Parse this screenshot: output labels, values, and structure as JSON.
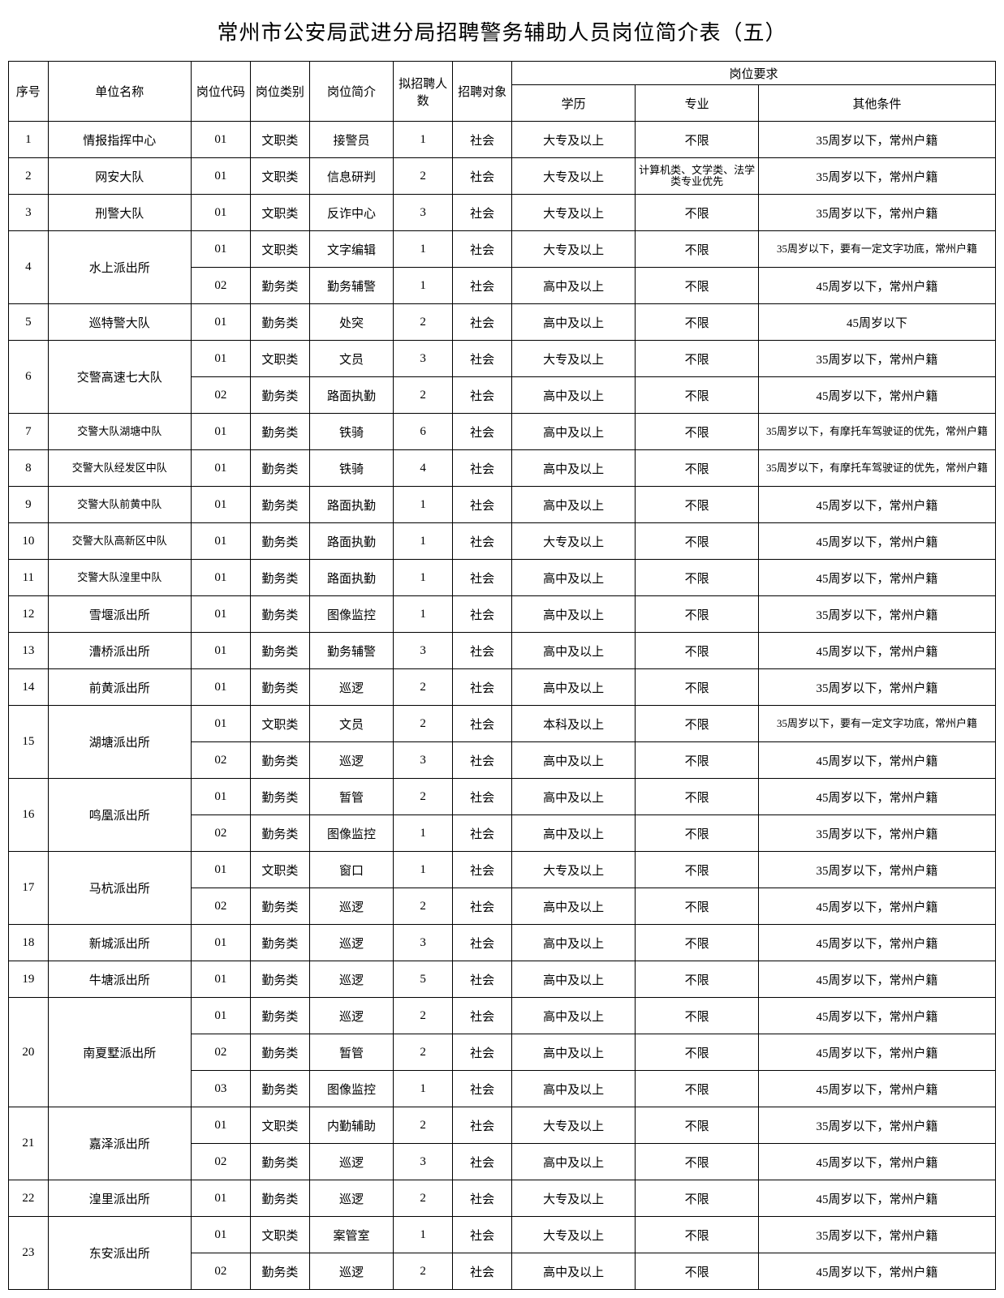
{
  "title": "常州市公安局武进分局招聘警务辅助人员岗位简介表（五）",
  "headers": {
    "seq": "序号",
    "unit": "单位名称",
    "code": "岗位代码",
    "cat": "岗位类别",
    "desc": "岗位简介",
    "num": "拟招聘人数",
    "target": "招聘对象",
    "req": "岗位要求",
    "edu": "学历",
    "major": "专业",
    "other": "其他条件"
  },
  "rows": [
    {
      "seq": "1",
      "unit": "情报指挥中心",
      "unitSpan": 1,
      "code": "01",
      "cat": "文职类",
      "desc": "接警员",
      "num": "1",
      "tgt": "社会",
      "edu": "大专及以上",
      "major": "不限",
      "other": "35周岁以下，常州户籍"
    },
    {
      "seq": "2",
      "unit": "网安大队",
      "unitSpan": 1,
      "code": "01",
      "cat": "文职类",
      "desc": "信息研判",
      "num": "2",
      "tgt": "社会",
      "edu": "大专及以上",
      "major": "计算机类、文学类、法学类专业优先",
      "majorSmall": true,
      "other": "35周岁以下，常州户籍"
    },
    {
      "seq": "3",
      "unit": "刑警大队",
      "unitSpan": 1,
      "code": "01",
      "cat": "文职类",
      "desc": "反诈中心",
      "num": "3",
      "tgt": "社会",
      "edu": "大专及以上",
      "major": "不限",
      "other": "35周岁以下，常州户籍"
    },
    {
      "seq": "4",
      "unit": "水上派出所",
      "unitSpan": 2,
      "code": "01",
      "cat": "文职类",
      "desc": "文字编辑",
      "num": "1",
      "tgt": "社会",
      "edu": "大专及以上",
      "major": "不限",
      "other": "35周岁以下，要有一定文字功底，常州户籍",
      "otherSmall": true
    },
    {
      "code": "02",
      "cat": "勤务类",
      "desc": "勤务辅警",
      "num": "1",
      "tgt": "社会",
      "edu": "高中及以上",
      "major": "不限",
      "other": "45周岁以下，常州户籍"
    },
    {
      "seq": "5",
      "unit": "巡特警大队",
      "unitSpan": 1,
      "code": "01",
      "cat": "勤务类",
      "desc": "处突",
      "num": "2",
      "tgt": "社会",
      "edu": "高中及以上",
      "major": "不限",
      "other": "45周岁以下"
    },
    {
      "seq": "6",
      "unit": "交警高速七大队",
      "unitSpan": 2,
      "code": "01",
      "cat": "文职类",
      "desc": "文员",
      "num": "3",
      "tgt": "社会",
      "edu": "大专及以上",
      "major": "不限",
      "other": "35周岁以下，常州户籍"
    },
    {
      "code": "02",
      "cat": "勤务类",
      "desc": "路面执勤",
      "num": "2",
      "tgt": "社会",
      "edu": "高中及以上",
      "major": "不限",
      "other": "45周岁以下，常州户籍"
    },
    {
      "seq": "7",
      "unit": "交警大队湖塘中队",
      "unitSpan": 1,
      "unitSmall": true,
      "code": "01",
      "cat": "勤务类",
      "desc": "铁骑",
      "num": "6",
      "tgt": "社会",
      "edu": "高中及以上",
      "major": "不限",
      "other": "35周岁以下，有摩托车驾驶证的优先，常州户籍",
      "otherSmall": true
    },
    {
      "seq": "8",
      "unit": "交警大队经发区中队",
      "unitSpan": 1,
      "unitSmall": true,
      "code": "01",
      "cat": "勤务类",
      "desc": "铁骑",
      "num": "4",
      "tgt": "社会",
      "edu": "高中及以上",
      "major": "不限",
      "other": "35周岁以下，有摩托车驾驶证的优先，常州户籍",
      "otherSmall": true
    },
    {
      "seq": "9",
      "unit": "交警大队前黄中队",
      "unitSpan": 1,
      "unitSmall": true,
      "code": "01",
      "cat": "勤务类",
      "desc": "路面执勤",
      "num": "1",
      "tgt": "社会",
      "edu": "高中及以上",
      "major": "不限",
      "other": "45周岁以下，常州户籍"
    },
    {
      "seq": "10",
      "unit": "交警大队高新区中队",
      "unitSpan": 1,
      "unitSmall": true,
      "code": "01",
      "cat": "勤务类",
      "desc": "路面执勤",
      "num": "1",
      "tgt": "社会",
      "edu": "大专及以上",
      "major": "不限",
      "other": "45周岁以下，常州户籍"
    },
    {
      "seq": "11",
      "unit": "交警大队湟里中队",
      "unitSpan": 1,
      "unitSmall": true,
      "code": "01",
      "cat": "勤务类",
      "desc": "路面执勤",
      "num": "1",
      "tgt": "社会",
      "edu": "高中及以上",
      "major": "不限",
      "other": "45周岁以下，常州户籍"
    },
    {
      "seq": "12",
      "unit": "雪堰派出所",
      "unitSpan": 1,
      "code": "01",
      "cat": "勤务类",
      "desc": "图像监控",
      "num": "1",
      "tgt": "社会",
      "edu": "高中及以上",
      "major": "不限",
      "other": "35周岁以下，常州户籍"
    },
    {
      "seq": "13",
      "unit": "漕桥派出所",
      "unitSpan": 1,
      "code": "01",
      "cat": "勤务类",
      "desc": "勤务辅警",
      "num": "3",
      "tgt": "社会",
      "edu": "高中及以上",
      "major": "不限",
      "other": "45周岁以下，常州户籍"
    },
    {
      "seq": "14",
      "unit": "前黄派出所",
      "unitSpan": 1,
      "code": "01",
      "cat": "勤务类",
      "desc": "巡逻",
      "num": "2",
      "tgt": "社会",
      "edu": "高中及以上",
      "major": "不限",
      "other": "35周岁以下，常州户籍"
    },
    {
      "seq": "15",
      "unit": "湖塘派出所",
      "unitSpan": 2,
      "code": "01",
      "cat": "文职类",
      "desc": "文员",
      "num": "2",
      "tgt": "社会",
      "edu": "本科及以上",
      "major": "不限",
      "other": "35周岁以下，要有一定文字功底，常州户籍",
      "otherSmall": true
    },
    {
      "code": "02",
      "cat": "勤务类",
      "desc": "巡逻",
      "num": "3",
      "tgt": "社会",
      "edu": "高中及以上",
      "major": "不限",
      "other": "45周岁以下，常州户籍"
    },
    {
      "seq": "16",
      "unit": "鸣凰派出所",
      "unitSpan": 2,
      "code": "01",
      "cat": "勤务类",
      "desc": "暂管",
      "num": "2",
      "tgt": "社会",
      "edu": "高中及以上",
      "major": "不限",
      "other": "45周岁以下，常州户籍"
    },
    {
      "code": "02",
      "cat": "勤务类",
      "desc": "图像监控",
      "num": "1",
      "tgt": "社会",
      "edu": "高中及以上",
      "major": "不限",
      "other": "35周岁以下，常州户籍"
    },
    {
      "seq": "17",
      "unit": "马杭派出所",
      "unitSpan": 2,
      "code": "01",
      "cat": "文职类",
      "desc": "窗口",
      "num": "1",
      "tgt": "社会",
      "edu": "大专及以上",
      "major": "不限",
      "other": "35周岁以下，常州户籍"
    },
    {
      "code": "02",
      "cat": "勤务类",
      "desc": "巡逻",
      "num": "2",
      "tgt": "社会",
      "edu": "高中及以上",
      "major": "不限",
      "other": "45周岁以下，常州户籍"
    },
    {
      "seq": "18",
      "unit": "新城派出所",
      "unitSpan": 1,
      "code": "01",
      "cat": "勤务类",
      "desc": "巡逻",
      "num": "3",
      "tgt": "社会",
      "edu": "高中及以上",
      "major": "不限",
      "other": "45周岁以下，常州户籍"
    },
    {
      "seq": "19",
      "unit": "牛塘派出所",
      "unitSpan": 1,
      "code": "01",
      "cat": "勤务类",
      "desc": "巡逻",
      "num": "5",
      "tgt": "社会",
      "edu": "高中及以上",
      "major": "不限",
      "other": "45周岁以下，常州户籍"
    },
    {
      "seq": "20",
      "unit": "南夏墅派出所",
      "unitSpan": 3,
      "code": "01",
      "cat": "勤务类",
      "desc": "巡逻",
      "num": "2",
      "tgt": "社会",
      "edu": "高中及以上",
      "major": "不限",
      "other": "45周岁以下，常州户籍"
    },
    {
      "code": "02",
      "cat": "勤务类",
      "desc": "暂管",
      "num": "2",
      "tgt": "社会",
      "edu": "高中及以上",
      "major": "不限",
      "other": "45周岁以下，常州户籍"
    },
    {
      "code": "03",
      "cat": "勤务类",
      "desc": "图像监控",
      "num": "1",
      "tgt": "社会",
      "edu": "高中及以上",
      "major": "不限",
      "other": "45周岁以下，常州户籍"
    },
    {
      "seq": "21",
      "unit": "嘉泽派出所",
      "unitSpan": 2,
      "code": "01",
      "cat": "文职类",
      "desc": "内勤辅助",
      "num": "2",
      "tgt": "社会",
      "edu": "大专及以上",
      "major": "不限",
      "other": "35周岁以下，常州户籍"
    },
    {
      "code": "02",
      "cat": "勤务类",
      "desc": "巡逻",
      "num": "3",
      "tgt": "社会",
      "edu": "高中及以上",
      "major": "不限",
      "other": "45周岁以下，常州户籍"
    },
    {
      "seq": "22",
      "unit": "湟里派出所",
      "unitSpan": 1,
      "code": "01",
      "cat": "勤务类",
      "desc": "巡逻",
      "num": "2",
      "tgt": "社会",
      "edu": "大专及以上",
      "major": "不限",
      "other": "45周岁以下，常州户籍"
    },
    {
      "seq": "23",
      "unit": "东安派出所",
      "unitSpan": 2,
      "code": "01",
      "cat": "文职类",
      "desc": "案管室",
      "num": "1",
      "tgt": "社会",
      "edu": "大专及以上",
      "major": "不限",
      "other": "35周岁以下，常州户籍"
    },
    {
      "code": "02",
      "cat": "勤务类",
      "desc": "巡逻",
      "num": "2",
      "tgt": "社会",
      "edu": "高中及以上",
      "major": "不限",
      "other": "45周岁以下，常州户籍"
    }
  ]
}
